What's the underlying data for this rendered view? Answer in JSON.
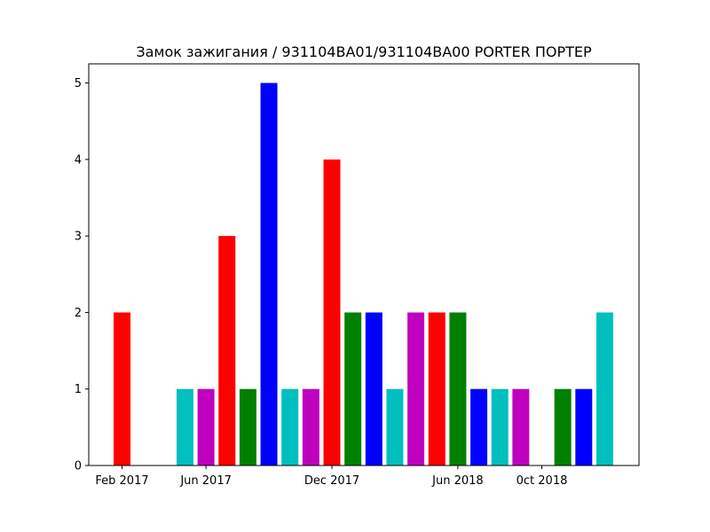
{
  "chart_data": {
    "type": "bar",
    "title": "Замок зажигания / 931104BA01/931104BA00 PORTER ПОРТЕР",
    "xlabel": "",
    "ylabel": "",
    "ylim": [
      0,
      5.25
    ],
    "yticks": [
      0,
      1,
      2,
      3,
      4,
      5
    ],
    "grid": false,
    "legend": "none",
    "x_ticks": [
      {
        "label": "Feb 2017",
        "month": 0
      },
      {
        "label": "Jun 2017",
        "month": 4
      },
      {
        "label": "Dec 2017",
        "month": 10
      },
      {
        "label": "Jun 2018",
        "month": 16
      },
      {
        "label": "0ct 2018",
        "month": 20
      }
    ],
    "bars": [
      {
        "month": 0,
        "value": 2,
        "color": "#ff0000"
      },
      {
        "month": 3,
        "value": 1,
        "color": "#00bfbf"
      },
      {
        "month": 4,
        "value": 1,
        "color": "#bf00bf"
      },
      {
        "month": 5,
        "value": 3,
        "color": "#ff0000"
      },
      {
        "month": 6,
        "value": 1,
        "color": "#008000"
      },
      {
        "month": 7,
        "value": 5,
        "color": "#0000ff"
      },
      {
        "month": 8,
        "value": 1,
        "color": "#00bfbf"
      },
      {
        "month": 9,
        "value": 1,
        "color": "#bf00bf"
      },
      {
        "month": 10,
        "value": 4,
        "color": "#ff0000"
      },
      {
        "month": 11,
        "value": 2,
        "color": "#008000"
      },
      {
        "month": 12,
        "value": 2,
        "color": "#0000ff"
      },
      {
        "month": 13,
        "value": 1,
        "color": "#00bfbf"
      },
      {
        "month": 14,
        "value": 2,
        "color": "#bf00bf"
      },
      {
        "month": 15,
        "value": 2,
        "color": "#ff0000"
      },
      {
        "month": 16,
        "value": 2,
        "color": "#008000"
      },
      {
        "month": 17,
        "value": 1,
        "color": "#0000ff"
      },
      {
        "month": 18,
        "value": 1,
        "color": "#00bfbf"
      },
      {
        "month": 19,
        "value": 1,
        "color": "#bf00bf"
      },
      {
        "month": 21,
        "value": 1,
        "color": "#008000"
      },
      {
        "month": 22,
        "value": 1,
        "color": "#0000ff"
      },
      {
        "month": 23,
        "value": 2,
        "color": "#00bfbf"
      }
    ]
  }
}
